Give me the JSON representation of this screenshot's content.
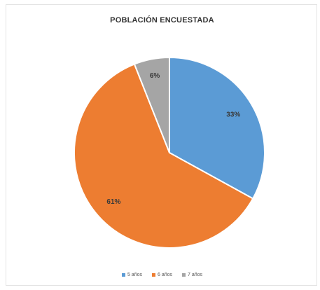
{
  "chart_data": {
    "type": "pie",
    "title": "POBLACIÓN ENCUESTADA",
    "categories": [
      "5 años",
      "6 años",
      "7 años"
    ],
    "values": [
      33,
      61,
      6
    ],
    "labels": [
      "33%",
      "61%",
      "6%"
    ],
    "colors": [
      "#5b9bd5",
      "#ed7d31",
      "#a5a5a5"
    ],
    "legend_position": "bottom"
  }
}
